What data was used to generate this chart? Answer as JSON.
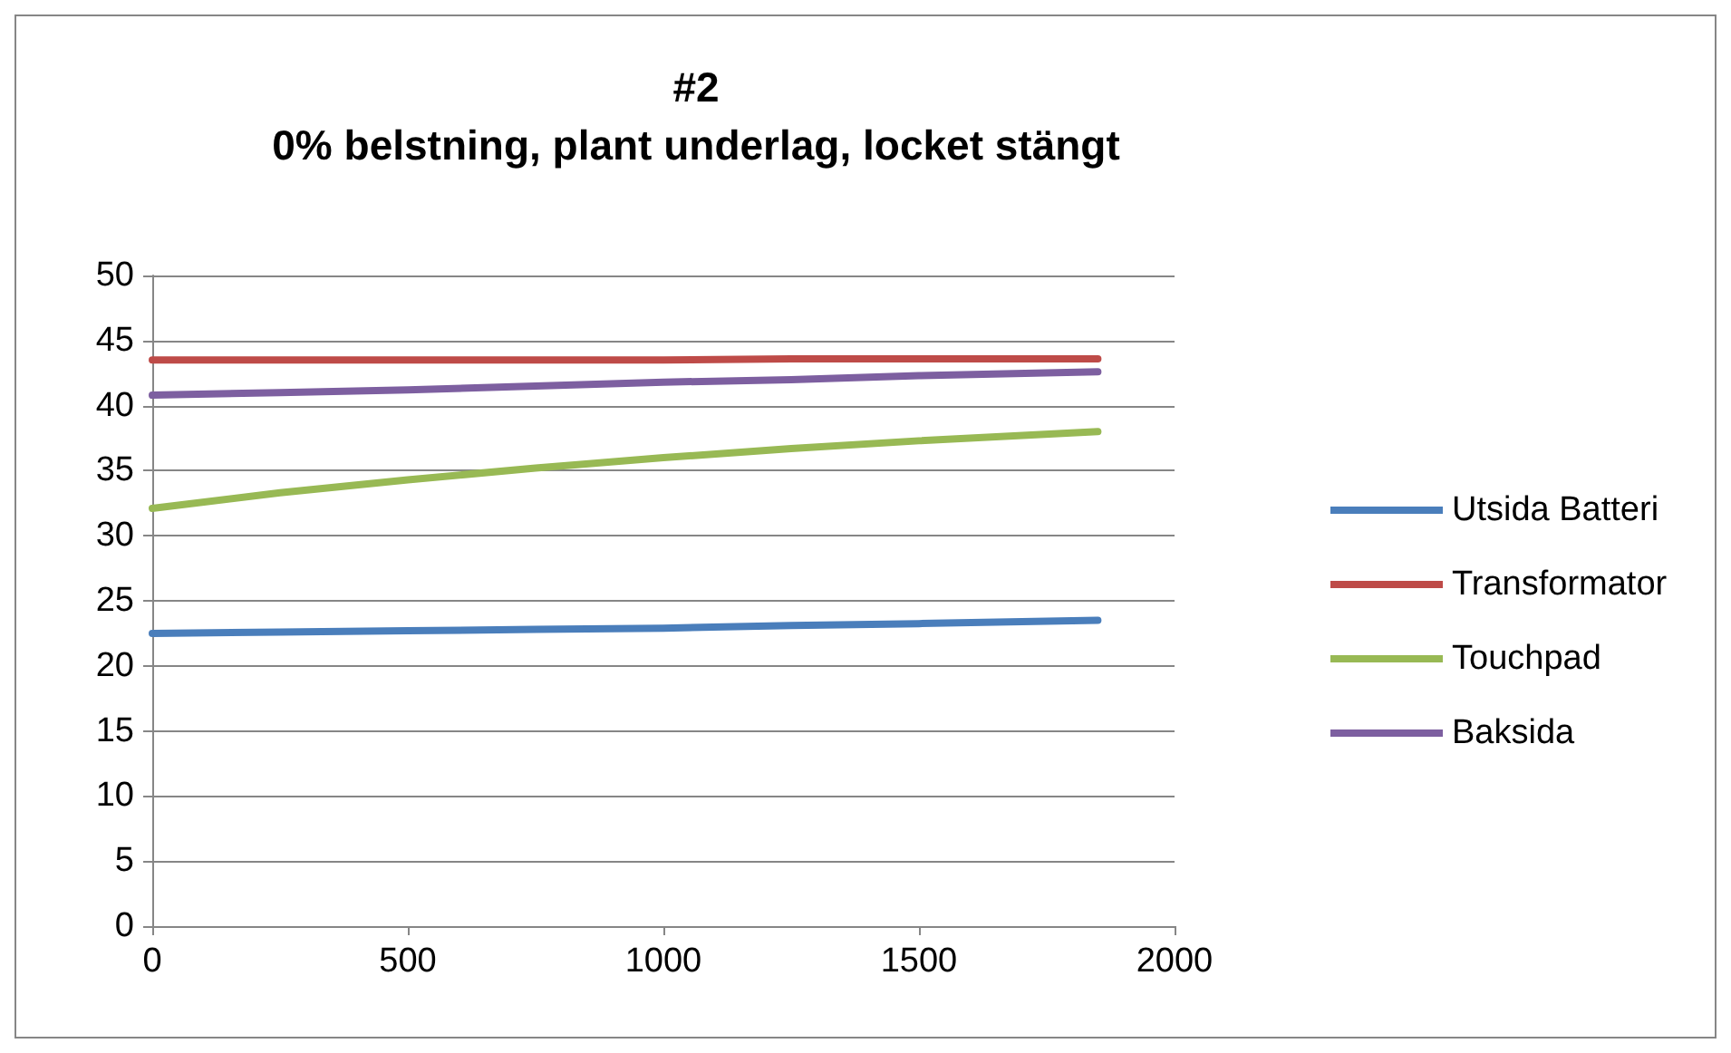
{
  "chart_data": {
    "type": "line",
    "title": "#2\n0% belstning, plant underlag, locket stängt",
    "x": [
      0,
      250,
      500,
      750,
      1000,
      1250,
      1500,
      1850
    ],
    "series": [
      {
        "name": "Utsida Batteri",
        "color": "#4a7ebb",
        "values": [
          22.5,
          22.6,
          22.7,
          22.8,
          22.9,
          23.1,
          23.25,
          23.5
        ]
      },
      {
        "name": "Transformator",
        "color": "#be4b48",
        "values": [
          43.5,
          43.5,
          43.5,
          43.5,
          43.5,
          43.6,
          43.6,
          43.6
        ]
      },
      {
        "name": "Touchpad",
        "color": "#98b954",
        "values": [
          32.1,
          33.3,
          34.3,
          35.2,
          36.0,
          36.7,
          37.3,
          38.0
        ]
      },
      {
        "name": "Baksida",
        "color": "#7d5fa0",
        "values": [
          40.8,
          41.0,
          41.2,
          41.5,
          41.8,
          42.0,
          42.3,
          42.6
        ]
      }
    ],
    "xlim": [
      0,
      2000
    ],
    "xticks": [
      0,
      500,
      1000,
      1500,
      2000
    ],
    "ylim": [
      0,
      50
    ],
    "yticks": [
      0,
      5,
      10,
      15,
      20,
      25,
      30,
      35,
      40,
      45,
      50
    ],
    "grid": "y",
    "legend": "right",
    "marker": "none",
    "line_style": "solid"
  }
}
